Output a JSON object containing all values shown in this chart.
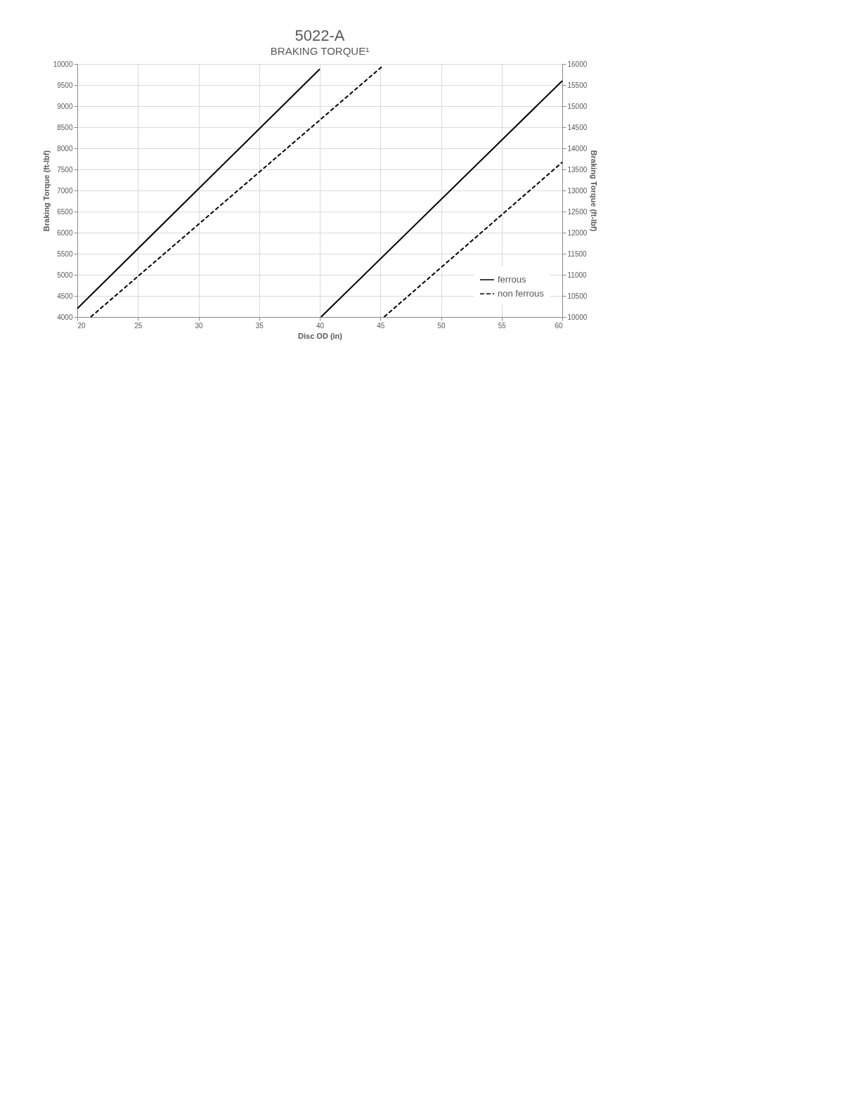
{
  "chart_data": {
    "type": "line",
    "title": "5022-A",
    "subtitle": "BRAKING TORQUE¹",
    "xlabel": "Disc OD (in)",
    "ylabel": "Braking Torque (ft-lbf)",
    "y2label": "Braking Torque (ft-lbf)",
    "xlim": [
      20,
      60
    ],
    "xticks": [
      20,
      25,
      30,
      35,
      40,
      45,
      50,
      55,
      60
    ],
    "ylim": [
      4000,
      10000
    ],
    "yticks": [
      4000,
      4500,
      5000,
      5500,
      6000,
      6500,
      7000,
      7500,
      8000,
      8500,
      9000,
      9500,
      10000
    ],
    "y2lim": [
      10000,
      16000
    ],
    "y2ticks": [
      10000,
      10500,
      11000,
      11500,
      12000,
      12500,
      13000,
      13500,
      14000,
      14500,
      15000,
      15500,
      16000
    ],
    "grid": true,
    "legend": "bottom right",
    "marker": "none",
    "series": [
      {
        "name": "ferrous",
        "color": "#000000",
        "line_style": "solid",
        "x": [
          20,
          40
        ],
        "values": [
          4200,
          9880
        ]
      },
      {
        "name": "non ferrous",
        "color": "#000000",
        "line_style": "dashed",
        "x": [
          21.1,
          45.1
        ],
        "values": [
          4000,
          9930
        ]
      },
      {
        "color": "#000000",
        "line_style": "solid",
        "axis": "y2",
        "x": [
          40.1,
          60
        ],
        "values": [
          10000,
          15600
        ]
      },
      {
        "color": "#000000",
        "line_style": "dashed",
        "axis": "y2",
        "x": [
          45.3,
          60
        ],
        "values": [
          10000,
          13670
        ]
      }
    ]
  }
}
